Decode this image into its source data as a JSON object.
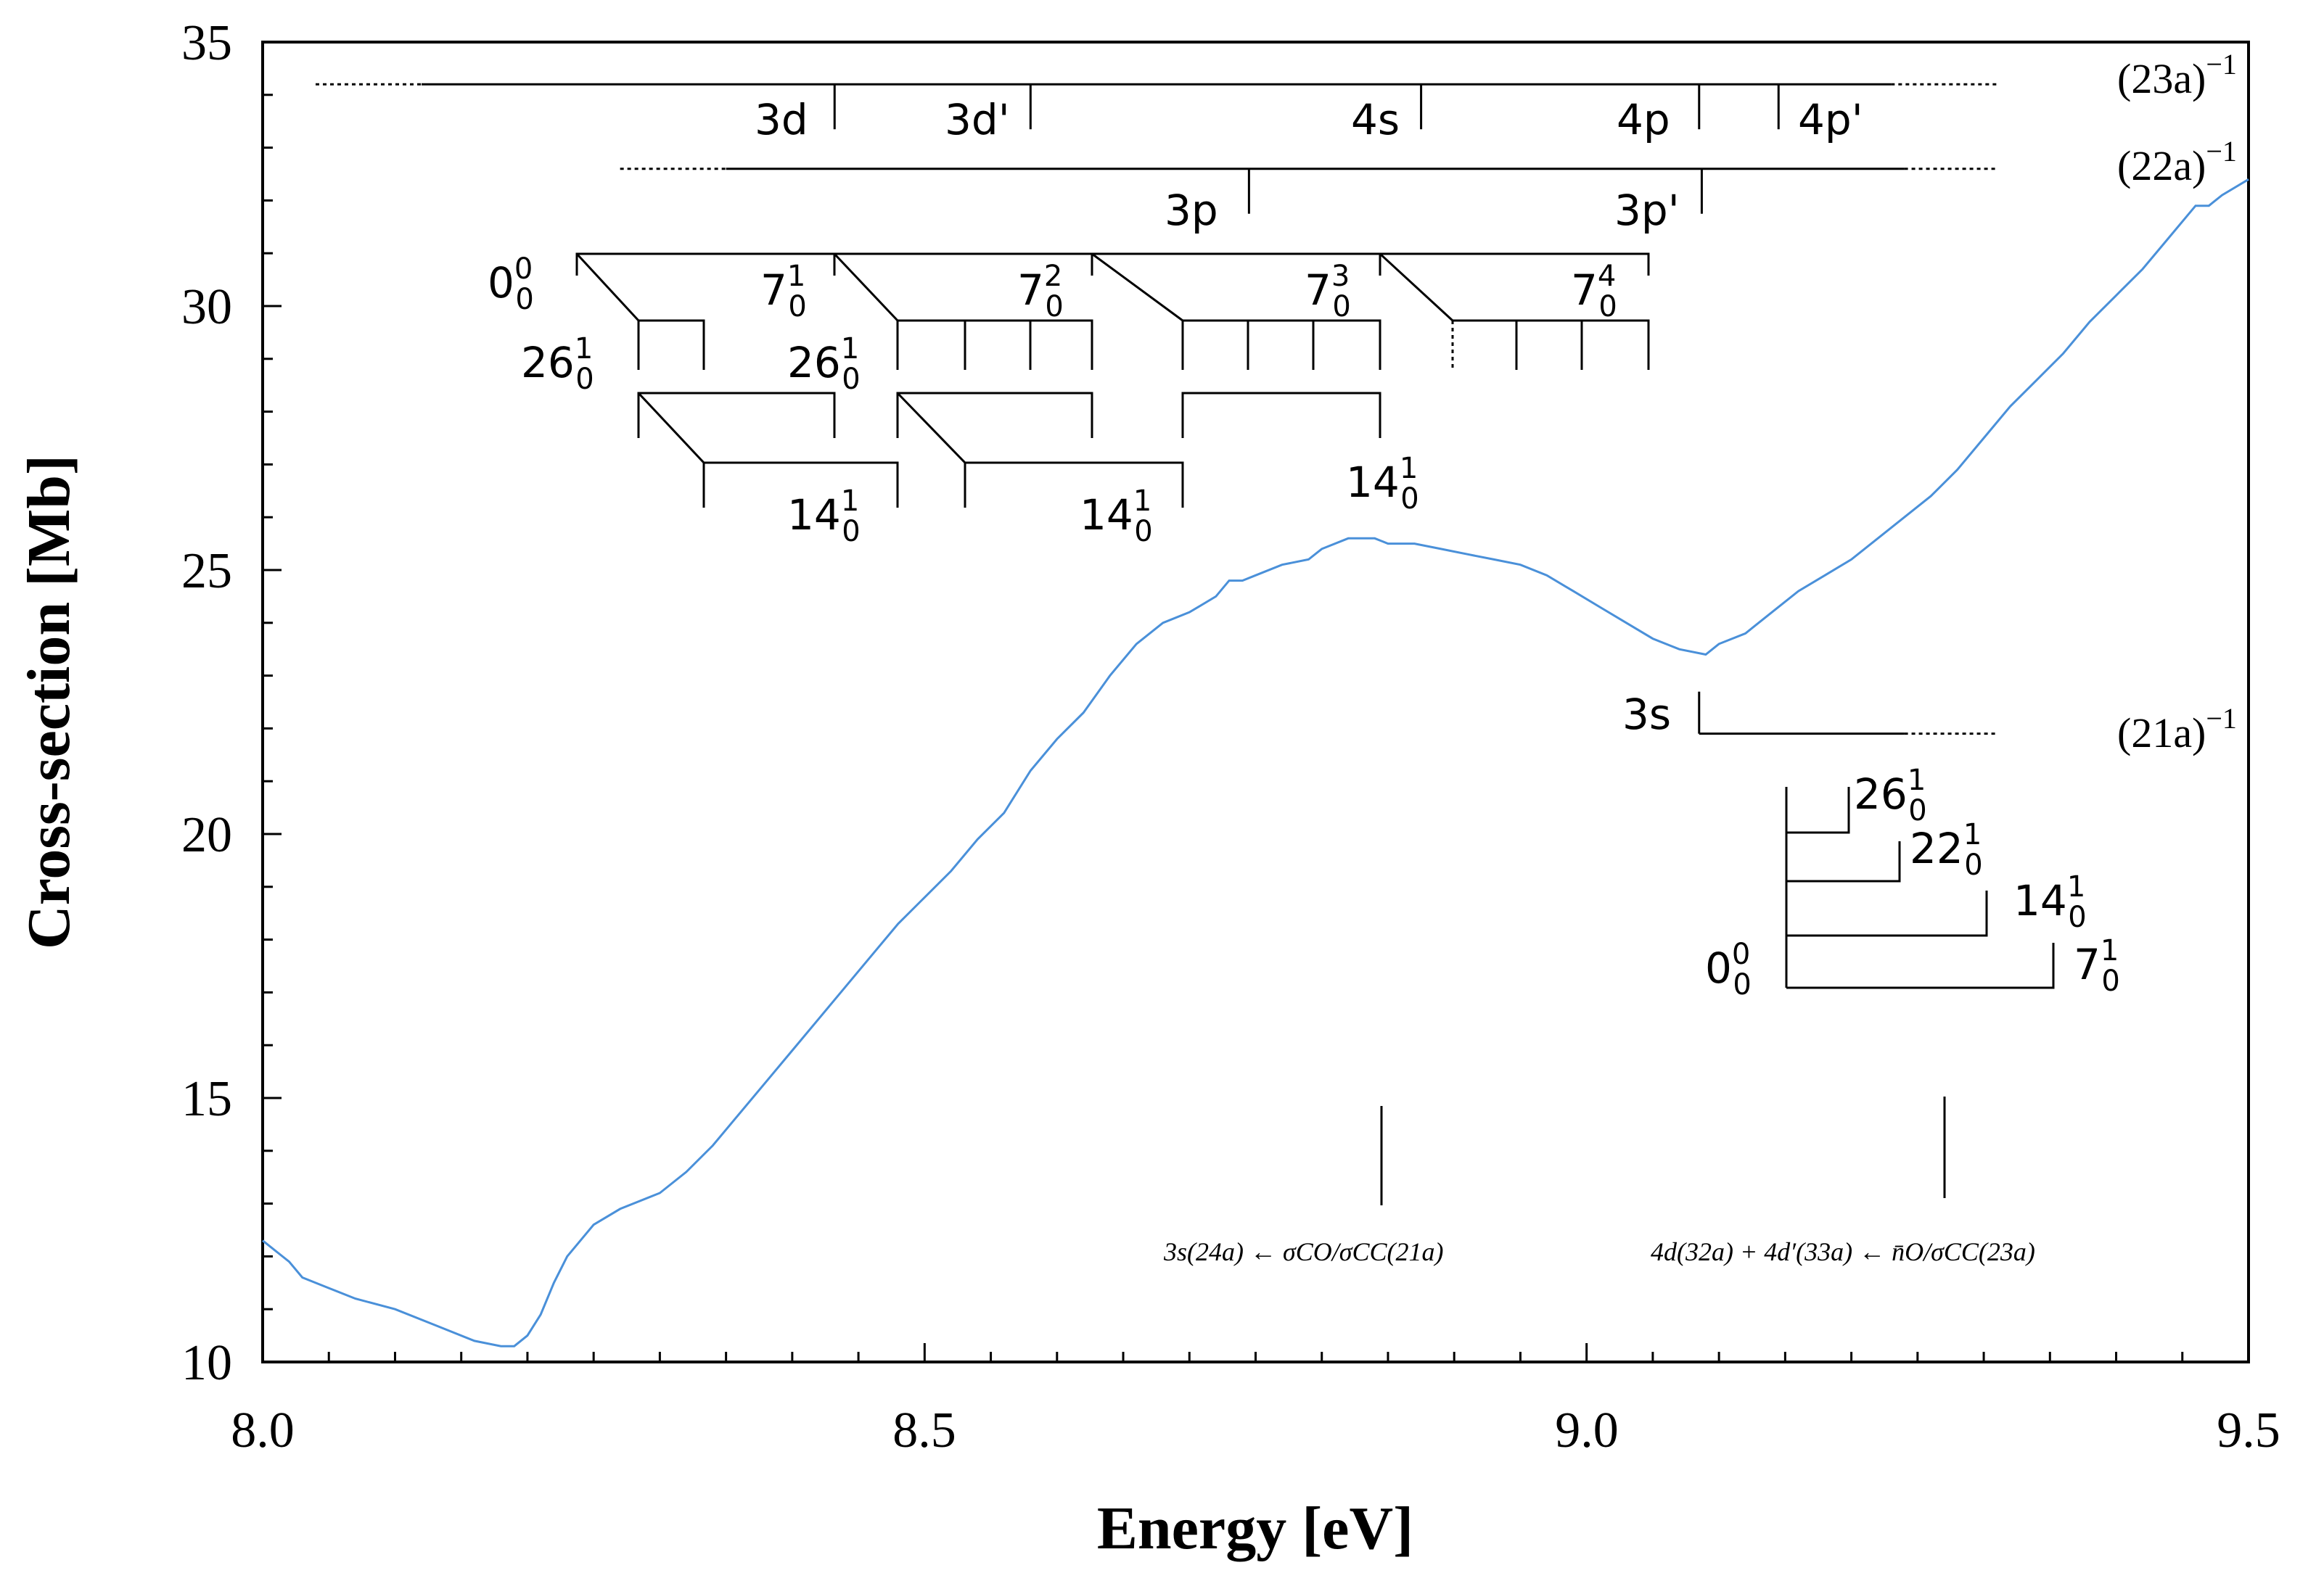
{
  "chart_data": {
    "type": "line",
    "title": "",
    "xlabel": "Energy [eV]",
    "ylabel": "Cross-section [Mb]",
    "xlim": [
      8.0,
      9.5
    ],
    "ylim": [
      10,
      35
    ],
    "x_ticks": [
      "8.0",
      "8.5",
      "9.0",
      "9.5"
    ],
    "y_ticks": [
      "10",
      "15",
      "20",
      "25",
      "30",
      "35"
    ],
    "grid": false,
    "series": [
      {
        "name": "cross-section",
        "color": "#4a90d9",
        "x": [
          8.0,
          8.02,
          8.03,
          8.05,
          8.07,
          8.1,
          8.13,
          8.16,
          8.18,
          8.19,
          8.2,
          8.21,
          8.22,
          8.23,
          8.25,
          8.27,
          8.3,
          8.32,
          8.34,
          8.36,
          8.38,
          8.4,
          8.42,
          8.44,
          8.46,
          8.48,
          8.5,
          8.52,
          8.54,
          8.56,
          8.58,
          8.6,
          8.62,
          8.64,
          8.66,
          8.68,
          8.7,
          8.72,
          8.73,
          8.74,
          8.75,
          8.77,
          8.79,
          8.8,
          8.82,
          8.84,
          8.85,
          8.87,
          8.89,
          8.91,
          8.93,
          8.95,
          8.97,
          8.99,
          9.01,
          9.03,
          9.05,
          9.07,
          9.09,
          9.1,
          9.12,
          9.14,
          9.16,
          9.18,
          9.2,
          9.22,
          9.24,
          9.26,
          9.28,
          9.3,
          9.32,
          9.34,
          9.36,
          9.38,
          9.4,
          9.42,
          9.44,
          9.46,
          9.47,
          9.48,
          9.5
        ],
        "y": [
          12.3,
          11.9,
          11.6,
          11.4,
          11.2,
          11.0,
          10.7,
          10.4,
          10.3,
          10.3,
          10.5,
          10.9,
          11.5,
          12.0,
          12.6,
          12.9,
          13.2,
          13.6,
          14.1,
          14.7,
          15.3,
          15.9,
          16.5,
          17.1,
          17.7,
          18.3,
          18.8,
          19.3,
          19.9,
          20.4,
          21.2,
          21.8,
          22.3,
          23.0,
          23.6,
          24.0,
          24.2,
          24.5,
          24.8,
          24.8,
          24.9,
          25.1,
          25.2,
          25.4,
          25.6,
          25.6,
          25.5,
          25.5,
          25.4,
          25.3,
          25.2,
          25.1,
          24.9,
          24.6,
          24.3,
          24.0,
          23.7,
          23.5,
          23.4,
          23.6,
          23.8,
          24.2,
          24.6,
          24.9,
          25.2,
          25.6,
          26.0,
          26.4,
          26.9,
          27.5,
          28.1,
          28.6,
          29.1,
          29.7,
          30.2,
          30.7,
          31.3,
          31.9,
          31.9,
          32.1,
          32.4
        ]
      }
    ],
    "ionization_limits": [
      {
        "label": "(23a)",
        "sup": "−1",
        "y": 34.2,
        "x_start": 8.04,
        "x_solid_start": 8.12,
        "x_solid_end": 9.23,
        "x_end": 9.31
      },
      {
        "label": "(22a)",
        "sup": "−1",
        "y": 32.6,
        "x_start": 8.27,
        "x_solid_start": 8.35,
        "x_solid_end": 9.24,
        "x_end": 9.31
      },
      {
        "label": "(21a)",
        "sup": "−1",
        "y": 21.9,
        "x_start": 9.085,
        "x_solid_start": 9.085,
        "x_solid_end": 9.24,
        "x_end": 9.31
      }
    ],
    "rydberg_states": [
      {
        "label": "3d",
        "x": 8.432,
        "limit": 0
      },
      {
        "label": "3d'",
        "x": 8.58,
        "limit": 0
      },
      {
        "label": "4s",
        "x": 8.875,
        "limit": 0
      },
      {
        "label": "4p",
        "x": 9.085,
        "limit": 0
      },
      {
        "label": "4p'",
        "x": 9.145,
        "limit": 0
      },
      {
        "label": "3p",
        "x": 8.745,
        "limit": 1
      },
      {
        "label": "3p'",
        "x": 9.087,
        "limit": 1
      },
      {
        "label": "3s",
        "x": 9.085,
        "limit": 2
      }
    ],
    "vibrational_labels": [
      {
        "base": "0",
        "sup": "0",
        "sub": "0"
      },
      {
        "base": "7",
        "sup": "1",
        "sub": "0"
      },
      {
        "base": "7",
        "sup": "2",
        "sub": "0"
      },
      {
        "base": "7",
        "sup": "3",
        "sub": "0"
      },
      {
        "base": "7",
        "sup": "4",
        "sub": "0"
      },
      {
        "base": "26",
        "sup": "1",
        "sub": "0"
      },
      {
        "base": "26",
        "sup": "1",
        "sub": "0"
      },
      {
        "base": "14",
        "sup": "1",
        "sub": "0"
      },
      {
        "base": "14",
        "sup": "1",
        "sub": "0"
      },
      {
        "base": "14",
        "sup": "1",
        "sub": "0"
      },
      {
        "base": "26",
        "sup": "1",
        "sub": "0"
      },
      {
        "base": "22",
        "sup": "1",
        "sub": "0"
      },
      {
        "base": "14",
        "sup": "1",
        "sub": "0"
      },
      {
        "base": "0",
        "sup": "0",
        "sub": "0"
      },
      {
        "base": "7",
        "sup": "1",
        "sub": "0"
      }
    ],
    "transitions": [
      {
        "label": "3s(24a) ← σCO/σCC(21a)",
        "x": 8.845
      },
      {
        "label": "4d(32a) + 4d′(33a) ← n̄O/σCC(23a)",
        "x": 9.27
      }
    ]
  }
}
